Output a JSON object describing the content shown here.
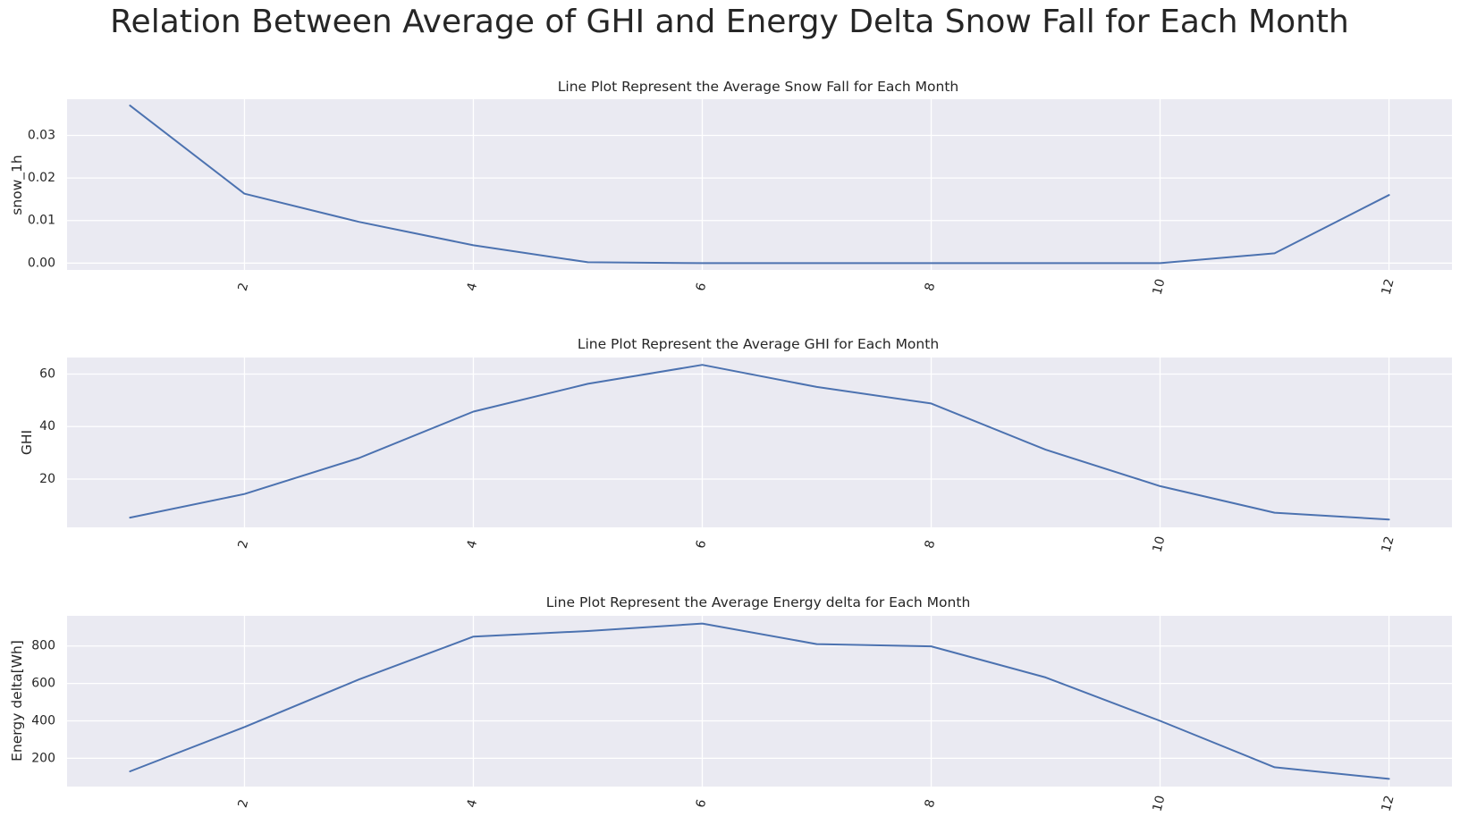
{
  "figure_title": "Relation Between Average of GHI and Energy Delta Snow Fall for Each Month",
  "chart_data": [
    {
      "type": "line",
      "title": "Line Plot Represent the Average Snow Fall for Each Month",
      "xlabel": "",
      "ylabel": "snow_1h",
      "x": [
        1,
        2,
        3,
        4,
        5,
        6,
        7,
        8,
        9,
        10,
        11,
        12
      ],
      "values": [
        0.037,
        0.0163,
        0.0097,
        0.0042,
        0.0002,
        0.0,
        0.0,
        0.0,
        0.0,
        0.0,
        0.0023,
        0.016
      ],
      "xlim": [
        0.45,
        12.55
      ],
      "ylim": [
        -0.0016,
        0.0385
      ],
      "xticks": [
        2,
        4,
        6,
        8,
        10,
        12
      ],
      "xtick_labels": [
        "2",
        "4",
        "6",
        "8",
        "10",
        "12"
      ],
      "yticks": [
        0.0,
        0.01,
        0.02,
        0.03
      ],
      "ytick_labels": [
        "0.00",
        "0.01",
        "0.02",
        "0.03"
      ],
      "grid": true,
      "line_color": "#4c72b0"
    },
    {
      "type": "line",
      "title": "Line Plot Represent the Average GHI for Each Month",
      "xlabel": "",
      "ylabel": "GHI",
      "x": [
        1,
        2,
        3,
        4,
        5,
        6,
        7,
        8,
        9,
        10,
        11,
        12
      ],
      "values": [
        5.3,
        14.3,
        28.0,
        45.7,
        56.3,
        63.5,
        55.1,
        48.8,
        31.2,
        17.3,
        7.2,
        4.6
      ],
      "xlim": [
        0.45,
        12.55
      ],
      "ylim": [
        1.6,
        66.3
      ],
      "xticks": [
        2,
        4,
        6,
        8,
        10,
        12
      ],
      "xtick_labels": [
        "2",
        "4",
        "6",
        "8",
        "10",
        "12"
      ],
      "yticks": [
        20,
        40,
        60
      ],
      "ytick_labels": [
        "20",
        "40",
        "60"
      ],
      "grid": true,
      "line_color": "#4c72b0"
    },
    {
      "type": "line",
      "title": "Line Plot Represent the Average Energy delta for Each Month",
      "xlabel": "",
      "ylabel": "Energy delta[Wh]",
      "x": [
        1,
        2,
        3,
        4,
        5,
        6,
        7,
        8,
        9,
        10,
        11,
        12
      ],
      "values": [
        130,
        367,
        621,
        850,
        880,
        920,
        810,
        798,
        632,
        400,
        152,
        90
      ],
      "xlim": [
        0.45,
        12.55
      ],
      "ylim": [
        49,
        961
      ],
      "xticks": [
        2,
        4,
        6,
        8,
        10,
        12
      ],
      "xtick_labels": [
        "2",
        "4",
        "6",
        "8",
        "10",
        "12"
      ],
      "yticks": [
        200,
        400,
        600,
        800
      ],
      "ytick_labels": [
        "200",
        "400",
        "600",
        "800"
      ],
      "grid": true,
      "line_color": "#4c72b0"
    }
  ]
}
